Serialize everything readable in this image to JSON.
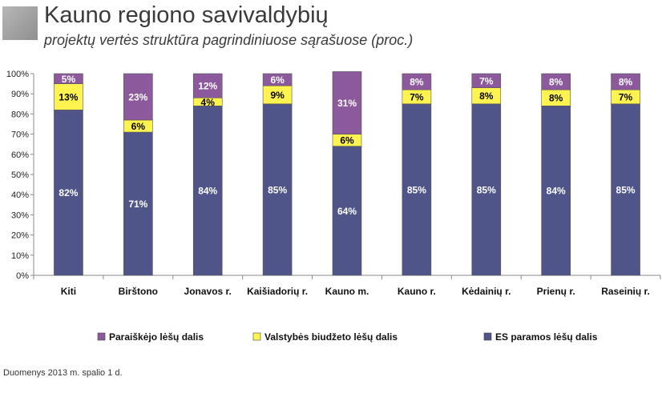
{
  "header": {
    "title": "Kauno regiono savivaldybių",
    "subtitle": "projektų vertės struktūra pagrindiniuose sąrašuose (proc.)"
  },
  "footnote": "Duomenys 2013 m. spalio 1 d.",
  "colors": {
    "es": "#4f5589",
    "valstybes": "#fff44f",
    "pareiskejo": "#8c5a9c",
    "es_label": "#ffffff",
    "valstybes_label": "#000000",
    "pareiskejo_label": "#ffffff"
  },
  "chart_data": {
    "type": "bar",
    "stacked": true,
    "categories": [
      "Kiti",
      "Birštono",
      "Jonavos r.",
      "Kaišiadorių r.",
      "Kauno m.",
      "Kauno r.",
      "Kėdainių r.",
      "Prienų r.",
      "Raseinių r."
    ],
    "series": [
      {
        "name": "ES paramos lėšų dalis",
        "key": "es",
        "values": [
          82,
          71,
          84,
          85,
          64,
          85,
          85,
          84,
          85
        ]
      },
      {
        "name": "Valstybės biudžeto lėšų dalis",
        "key": "valstybes",
        "values": [
          13,
          6,
          4,
          9,
          6,
          7,
          8,
          8,
          7
        ]
      },
      {
        "name": "Paraiškėjo lėšų dalis",
        "key": "pareiskejo",
        "values": [
          5,
          23,
          12,
          6,
          31,
          8,
          7,
          8,
          8
        ]
      }
    ],
    "data_labels": [
      [
        "82%",
        "71%",
        "84%",
        "85%",
        "64%",
        "85%",
        "85%",
        "84%",
        "85%"
      ],
      [
        "13%",
        "6%",
        "4%",
        "9%",
        "6%",
        "7%",
        "8%",
        "8%",
        "7%"
      ],
      [
        "5%",
        "23%",
        "12%",
        "6%",
        "31%",
        "8%",
        "7%",
        "8%",
        "8%"
      ]
    ],
    "yticks": [
      "0%",
      "10%",
      "20%",
      "30%",
      "40%",
      "50%",
      "60%",
      "70%",
      "80%",
      "90%",
      "100%"
    ],
    "ylim": [
      0,
      100
    ],
    "grid": false,
    "legend": {
      "position": "bottom",
      "items": [
        "Paraiškėjo lėšų dalis",
        "Valstybės biudžeto lėšų dalis",
        "ES paramos lėšų dalis"
      ]
    }
  }
}
